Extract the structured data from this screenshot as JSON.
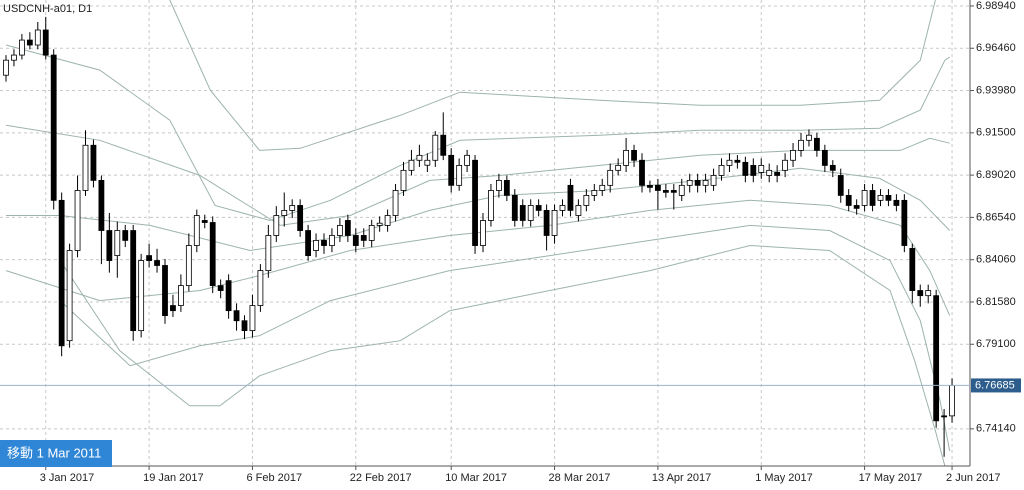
{
  "chart_data": {
    "type": "candlestick",
    "title": "USDCNH-a01, D1",
    "annotation": "移動 1 Mar 2011",
    "last_price": 6.76685,
    "ylim": [
      6.7196,
      6.9929
    ],
    "yticks": [
      {
        "value": 6.9894,
        "label": "6.98940"
      },
      {
        "value": 6.9646,
        "label": "6.96460"
      },
      {
        "value": 6.9398,
        "label": "6.93980"
      },
      {
        "value": 6.915,
        "label": "6.91500"
      },
      {
        "value": 6.8902,
        "label": "6.89020"
      },
      {
        "value": 6.8654,
        "label": "6.86540"
      },
      {
        "value": 6.8406,
        "label": "6.84060"
      },
      {
        "value": 6.8158,
        "label": "6.81580"
      },
      {
        "value": 6.791,
        "label": "6.79100"
      },
      {
        "value": 6.7414,
        "label": "6.74140"
      }
    ],
    "grid": true,
    "up_color": "#ffffff",
    "down_color": "#000000",
    "band_color": "#9db3ae",
    "price_line_color": "#9fb3c8",
    "price_label_color": "#2d5d8c",
    "categories": [
      null,
      null,
      null,
      null,
      null,
      "3 Jan 2017",
      null,
      null,
      null,
      null,
      null,
      null,
      null,
      null,
      null,
      null,
      null,
      null,
      "19 Jan 2017",
      null,
      null,
      null,
      null,
      null,
      null,
      null,
      null,
      null,
      null,
      null,
      null,
      "6 Feb 2017",
      null,
      null,
      null,
      null,
      null,
      null,
      null,
      null,
      null,
      null,
      null,
      null,
      "22 Feb 2017",
      null,
      null,
      null,
      null,
      null,
      null,
      null,
      null,
      null,
      null,
      null,
      "10 Mar 2017",
      null,
      null,
      null,
      null,
      null,
      null,
      null,
      null,
      null,
      null,
      null,
      null,
      "28 Mar 2017",
      null,
      null,
      null,
      null,
      null,
      null,
      null,
      null,
      null,
      null,
      null,
      null,
      "13 Apr 2017",
      null,
      null,
      null,
      null,
      null,
      null,
      null,
      null,
      null,
      null,
      null,
      null,
      "1 May 2017",
      null,
      null,
      null,
      null,
      null,
      null,
      null,
      null,
      null,
      null,
      null,
      null,
      "17 May 2017",
      null,
      null,
      null,
      null,
      null,
      null,
      null,
      null,
      null,
      null,
      "2 Jun 2017"
    ],
    "open": [
      6.9488,
      6.9576,
      6.9606,
      6.9694,
      6.9665,
      6.9753,
      6.9606,
      6.8754,
      6.7931,
      6.846,
      6.8812,
      6.9077,
      6.8871,
      6.8577,
      6.843,
      6.8577,
      6.8577,
      6.799,
      6.843,
      6.8401,
      6.8372,
      6.8137,
      6.8137,
      6.8254,
      6.8489,
      6.8636,
      6.8624,
      6.8254,
      6.8283,
      6.8107,
      6.8048,
      6.799,
      6.8137,
      6.8342,
      6.8548,
      6.8665,
      6.8695,
      6.8724,
      6.8577,
      6.846,
      6.8519,
      6.8489,
      6.8548,
      6.8636,
      6.8548,
      6.8548,
      6.8519,
      6.8607,
      6.8607,
      6.8665,
      6.8812,
      6.893,
      6.8989,
      6.896,
      6.8989,
      6.9136,
      6.9018,
      6.8842,
      6.8959,
      6.8989,
      6.8489,
      6.8636,
      6.8812,
      6.8871,
      6.8783,
      6.8724,
      6.8636,
      6.8724,
      6.8695,
      6.8548,
      6.8695,
      6.8842,
      6.8665,
      6.8724,
      6.8783,
      6.8812,
      6.8842,
      6.893,
      6.8959,
      6.9047,
      6.8989,
      6.8842,
      6.8842,
      6.8812,
      6.8812,
      6.8783,
      6.8842,
      6.8871,
      6.8842,
      6.8842,
      6.89,
      6.8959,
      6.8989,
      6.8977,
      6.8959,
      6.8918,
      6.89,
      6.8918,
      6.893,
      6.8989,
      6.9047,
      6.9106,
      6.9118,
      6.9047,
      6.8959,
      6.89,
      6.8783,
      6.8724,
      6.8724,
      6.8812,
      6.8754,
      6.8783,
      6.8754,
      6.8754,
      6.8472,
      6.8225,
      6.8195,
      6.8195,
      6.749,
      6.749
    ],
    "high": [
      6.9606,
      6.964,
      6.973,
      6.974,
      6.98,
      6.983,
      6.964,
      6.88,
      6.85,
      6.89,
      6.9165,
      6.911,
      6.89,
      6.868,
      6.863,
      6.861,
      6.861,
      6.844,
      6.85,
      6.847,
      6.841,
      6.82,
      6.832,
      6.856,
      6.87,
      6.867,
      6.866,
      6.829,
      6.832,
      6.815,
      6.808,
      6.82,
      6.838,
      6.861,
      6.872,
      6.88,
      6.876,
      6.876,
      6.861,
      6.856,
      6.856,
      6.859,
      6.865,
      6.867,
      6.859,
      6.859,
      6.864,
      6.866,
      6.87,
      6.885,
      6.898,
      6.905,
      6.908,
      6.903,
      6.916,
      6.927,
      6.906,
      6.9,
      6.905,
      6.902,
      6.868,
      6.885,
      6.891,
      6.89,
      6.882,
      6.876,
      6.876,
      6.876,
      6.873,
      6.873,
      6.876,
      6.888,
      6.876,
      6.882,
      6.885,
      6.888,
      6.897,
      6.9,
      6.912,
      6.908,
      6.903,
      6.887,
      6.888,
      6.885,
      6.885,
      6.888,
      6.891,
      6.891,
      6.891,
      6.894,
      6.9,
      6.903,
      6.902,
      6.901,
      6.9,
      6.9,
      6.897,
      6.896,
      6.903,
      6.909,
      6.915,
      6.917,
      6.915,
      6.908,
      6.899,
      6.894,
      6.882,
      6.876,
      6.885,
      6.885,
      6.882,
      6.882,
      6.879,
      6.879,
      6.85,
      6.826,
      6.826,
      6.823,
      6.753,
      6.771
    ],
    "low": [
      6.945,
      6.954,
      6.958,
      6.964,
      6.964,
      6.958,
      6.87,
      6.784,
      6.789,
      6.842,
      6.878,
      6.883,
      6.838,
      6.833,
      6.83,
      6.848,
      6.793,
      6.795,
      6.836,
      6.833,
      6.803,
      6.807,
      6.81,
      6.822,
      6.845,
      6.859,
      6.821,
      6.818,
      6.806,
      6.799,
      6.794,
      6.795,
      6.81,
      6.83,
      6.851,
      6.86,
      6.865,
      6.854,
      6.84,
      6.842,
      6.844,
      6.845,
      6.851,
      6.851,
      6.845,
      6.848,
      6.848,
      6.857,
      6.857,
      6.863,
      6.878,
      6.89,
      6.895,
      6.892,
      6.895,
      6.899,
      6.88,
      6.881,
      6.892,
      6.844,
      6.845,
      6.86,
      6.877,
      6.875,
      6.86,
      6.86,
      6.86,
      6.866,
      6.846,
      6.85,
      6.866,
      6.866,
      6.863,
      6.869,
      6.875,
      6.878,
      6.88,
      6.89,
      6.892,
      6.895,
      6.88,
      6.88,
      6.87,
      6.877,
      6.87,
      6.875,
      6.88,
      6.88,
      6.88,
      6.881,
      6.887,
      6.892,
      6.894,
      6.886,
      6.886,
      6.888,
      6.886,
      6.886,
      6.889,
      6.895,
      6.901,
      6.907,
      6.901,
      6.892,
      6.889,
      6.874,
      6.869,
      6.867,
      6.869,
      6.869,
      6.872,
      6.872,
      6.869,
      6.845,
      6.815,
      6.813,
      6.815,
      6.742,
      6.725,
      6.745
    ],
    "close": [
      6.9576,
      6.9606,
      6.9694,
      6.9665,
      6.9753,
      6.9606,
      6.8754,
      6.7901,
      6.846,
      6.8812,
      6.9077,
      6.8871,
      6.8577,
      6.8401,
      6.8577,
      6.8519,
      6.799,
      6.8401,
      6.8401,
      6.8372,
      6.8078,
      6.8107,
      6.8254,
      6.8489,
      6.8665,
      6.8624,
      6.8254,
      6.8225,
      6.8107,
      6.8048,
      6.799,
      6.8137,
      6.8342,
      6.8548,
      6.8665,
      6.8695,
      6.8724,
      6.8577,
      6.843,
      6.8519,
      6.8489,
      6.8548,
      6.8607,
      6.8548,
      6.8489,
      6.8519,
      6.8607,
      6.862,
      6.8665,
      6.8812,
      6.893,
      6.8989,
      6.9018,
      6.8989,
      6.9136,
      6.9018,
      6.8842,
      6.8959,
      6.9018,
      6.8489,
      6.8636,
      6.8812,
      6.8871,
      6.8783,
      6.8636,
      6.8636,
      6.8724,
      6.8695,
      6.8548,
      6.8695,
      6.8724,
      6.8695,
      6.8724,
      6.8783,
      6.8812,
      6.8842,
      6.893,
      6.8959,
      6.9047,
      6.8989,
      6.8842,
      6.883,
      6.8812,
      6.8801,
      6.8801,
      6.8842,
      6.8871,
      6.8842,
      6.8871,
      6.89,
      6.8959,
      6.8989,
      6.8977,
      6.89,
      6.89,
      6.8959,
      6.893,
      6.89,
      6.8989,
      6.9047,
      6.9106,
      6.9136,
      6.9047,
      6.8959,
      6.893,
      6.8783,
      6.8724,
      6.8707,
      6.8812,
      6.8724,
      6.8783,
      6.8754,
      6.8724,
      6.8489,
      6.8225,
      6.8195,
      6.8225,
      6.7461,
      6.7485,
      6.76685
    ],
    "bands": [
      {
        "x": [
          20.6,
          25.7,
          31.9,
          37.0,
          49.6,
          57.1,
          74.7,
          87.3,
          99.9,
          109.9,
          115.0,
          116.9
        ],
        "values": [
          6.9929,
          6.94,
          6.9047,
          6.9059,
          6.9253,
          6.9388,
          6.9341,
          6.9312,
          6.9312,
          6.9341,
          6.9576,
          6.9929
        ]
      },
      {
        "x": [
          0,
          11.8,
          20.6,
          26.3,
          33.2,
          40.8,
          49.6,
          57.1,
          74.7,
          87.3,
          99.9,
          109.9,
          115.0,
          118.1,
          118.7
        ],
        "values": [
          6.9665,
          6.9518,
          6.9224,
          6.8724,
          6.8636,
          6.8754,
          6.8959,
          6.9106,
          6.9136,
          6.9165,
          6.9165,
          6.9177,
          6.9283,
          6.9576,
          6.9594
        ]
      },
      {
        "x": [
          0,
          11.8,
          24.4,
          34.5,
          43.3,
          53.3,
          62.1,
          74.7,
          87.3,
          99.9,
          112.5,
          116.2,
          118.7
        ],
        "values": [
          6.9194,
          6.9106,
          6.89,
          6.8607,
          6.8665,
          6.8871,
          6.89,
          6.8959,
          6.9018,
          6.9047,
          6.9047,
          6.9118,
          6.9089
        ]
      },
      {
        "x": [
          0,
          6.8,
          18.1,
          30.7,
          43.3,
          53.3,
          62.1,
          74.7,
          87.3,
          99.9,
          109.9,
          115.0,
          118.7
        ],
        "values": [
          6.8665,
          6.8665,
          6.8607,
          6.846,
          6.8548,
          6.8695,
          6.8783,
          6.8812,
          6.8871,
          6.8942,
          6.8883,
          6.8754,
          6.8577
        ]
      },
      {
        "x": [
          0,
          11.8,
          24.4,
          31.9,
          43.3,
          55.8,
          68.4,
          81.0,
          93.6,
          103.6,
          112.5,
          116.2,
          118.7
        ],
        "values": [
          6.8342,
          6.8166,
          6.8225,
          6.8313,
          6.846,
          6.8548,
          6.8607,
          6.8695,
          6.8754,
          6.8724,
          6.8607,
          6.8342,
          6.8078
        ]
      },
      {
        "x": [
          6.8,
          15.6,
          24.4,
          31.9,
          40.8,
          55.8,
          68.4,
          81.0,
          93.6,
          103.6,
          111.2,
          115.0,
          117.5,
          118.7
        ],
        "values": [
          6.8166,
          6.7784,
          6.7901,
          6.796,
          6.8166,
          6.8342,
          6.843,
          6.8519,
          6.8607,
          6.8577,
          6.8401,
          6.8048,
          6.7578,
          6.7284
        ]
      },
      {
        "x": [
          6.8,
          14.3,
          23.1,
          26.9,
          31.9,
          40.8,
          49.6,
          55.8,
          68.4,
          81.0,
          93.6,
          103.6,
          111.2,
          114.3,
          116.9,
          118.1
        ],
        "values": [
          6.8401,
          6.7872,
          6.7549,
          6.7549,
          6.7725,
          6.7872,
          6.7931,
          6.8107,
          6.8225,
          6.8342,
          6.8489,
          6.846,
          6.8225,
          6.7813,
          6.7402,
          6.7196
        ]
      }
    ]
  }
}
